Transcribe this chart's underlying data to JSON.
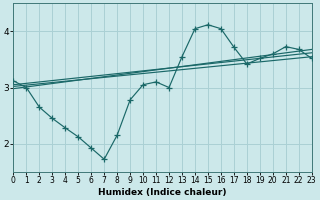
{
  "xlabel": "Humidex (Indice chaleur)",
  "bg_color": "#cce8ea",
  "grid_color": "#aad0d4",
  "line_color": "#1a6868",
  "xlim": [
    0,
    23
  ],
  "ylim": [
    1.5,
    4.5
  ],
  "yticks": [
    2,
    3,
    4
  ],
  "xticks": [
    0,
    1,
    2,
    3,
    4,
    5,
    6,
    7,
    8,
    9,
    10,
    11,
    12,
    13,
    14,
    15,
    16,
    17,
    18,
    19,
    20,
    21,
    22,
    23
  ],
  "curve": {
    "x": [
      0,
      1,
      2,
      3,
      4,
      5,
      6,
      7,
      8,
      9,
      10,
      11,
      12,
      13,
      14,
      15,
      16,
      17,
      18,
      19,
      20,
      21,
      22,
      23
    ],
    "y": [
      3.12,
      3.0,
      2.65,
      2.45,
      2.28,
      2.12,
      1.92,
      1.72,
      2.15,
      2.78,
      3.05,
      3.1,
      3.0,
      3.55,
      4.05,
      4.12,
      4.05,
      3.72,
      3.42,
      3.52,
      3.6,
      3.73,
      3.68,
      3.52
    ]
  },
  "lines": [
    {
      "x": [
        0,
        23
      ],
      "y": [
        3.02,
        3.55
      ]
    },
    {
      "x": [
        0,
        23
      ],
      "y": [
        2.98,
        3.68
      ]
    },
    {
      "x": [
        0,
        23
      ],
      "y": [
        3.05,
        3.62
      ]
    }
  ]
}
